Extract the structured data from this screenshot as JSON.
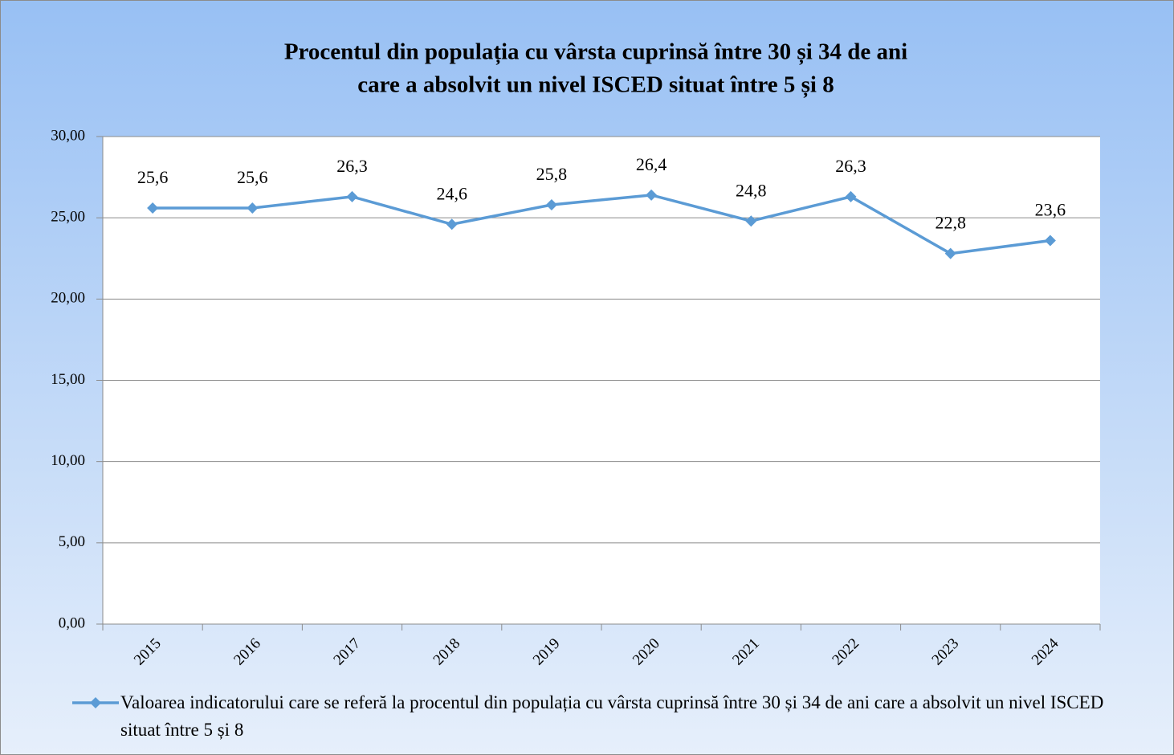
{
  "chart_data": {
    "type": "line",
    "title": [
      "Procentul din populația cu vârsta cuprinsă între 30 și 34 de ani",
      "care a absolvit un nivel ISCED situat între 5 și 8"
    ],
    "categories": [
      "2015",
      "2016",
      "2017",
      "2018",
      "2019",
      "2020",
      "2021",
      "2022",
      "2023",
      "2024"
    ],
    "series": [
      {
        "name": "Valoarea indicatorului care se referă la procentul din populația cu vârsta cuprinsă între 30 și 34 de ani care a absolvit un nivel ISCED situat între 5 și 8",
        "color": "#5b9bd5",
        "values": [
          25.6,
          25.6,
          26.3,
          24.6,
          25.8,
          26.4,
          24.8,
          26.3,
          22.8,
          23.6
        ],
        "value_labels": [
          "25,6",
          "25,6",
          "26,3",
          "24,6",
          "25,8",
          "26,4",
          "24,8",
          "26,3",
          "22,8",
          "23,6"
        ]
      }
    ],
    "ylim": [
      0,
      30
    ],
    "yticks": [
      {
        "value": 0,
        "label": "0,00"
      },
      {
        "value": 5,
        "label": "5,00"
      },
      {
        "value": 10,
        "label": "10,00"
      },
      {
        "value": 15,
        "label": "15,00"
      },
      {
        "value": 20,
        "label": "20,00"
      },
      {
        "value": 25,
        "label": "25,00"
      },
      {
        "value": 30,
        "label": "30,00"
      }
    ],
    "grid": true,
    "legend": "bottom"
  }
}
